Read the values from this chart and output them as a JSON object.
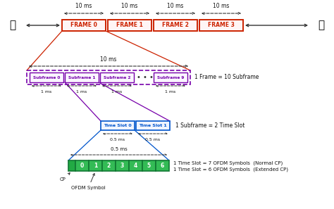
{
  "bg_color": "#ffffff",
  "frame_labels": [
    "FRAME 0",
    "FRAME 1",
    "FRAME 2",
    "FRAME 3"
  ],
  "subframe_labels": [
    "Subframe 0",
    "Subframe 1",
    "Subframe 2",
    "Subframe 9"
  ],
  "timeslot_labels": [
    "Time Slot 0",
    "Time Slot 1"
  ],
  "ofdm_labels": [
    "0",
    "1",
    "2",
    "3",
    "4",
    "5",
    "6"
  ],
  "frame_edge": "#cc2200",
  "frame_face": "#fff5f5",
  "subframe_edge": "#7700aa",
  "subframe_face": "#faf5ff",
  "timeslot_edge": "#0055cc",
  "timeslot_face": "#f0f4ff",
  "ofdm_face": "#33bb55",
  "ofdm_edge": "#117733",
  "ofdm_text": "#ffffff",
  "red_line": "#cc2200",
  "purple_line": "#7700aa",
  "blue_line": "#0055cc",
  "arrow_col": "#333333",
  "text_col": "#111111",
  "annotation_frame": "1 Frame = 10 Subframe",
  "annotation_subframe": "1 Subframe = 2 Time Slot",
  "annotation_ofdm1": "1 Time Slot = 7 OFDM Symbols  (Normal CP)",
  "annotation_ofdm2": "1 Time Slot = 6 OFDM Symbols  (Extended CP)"
}
